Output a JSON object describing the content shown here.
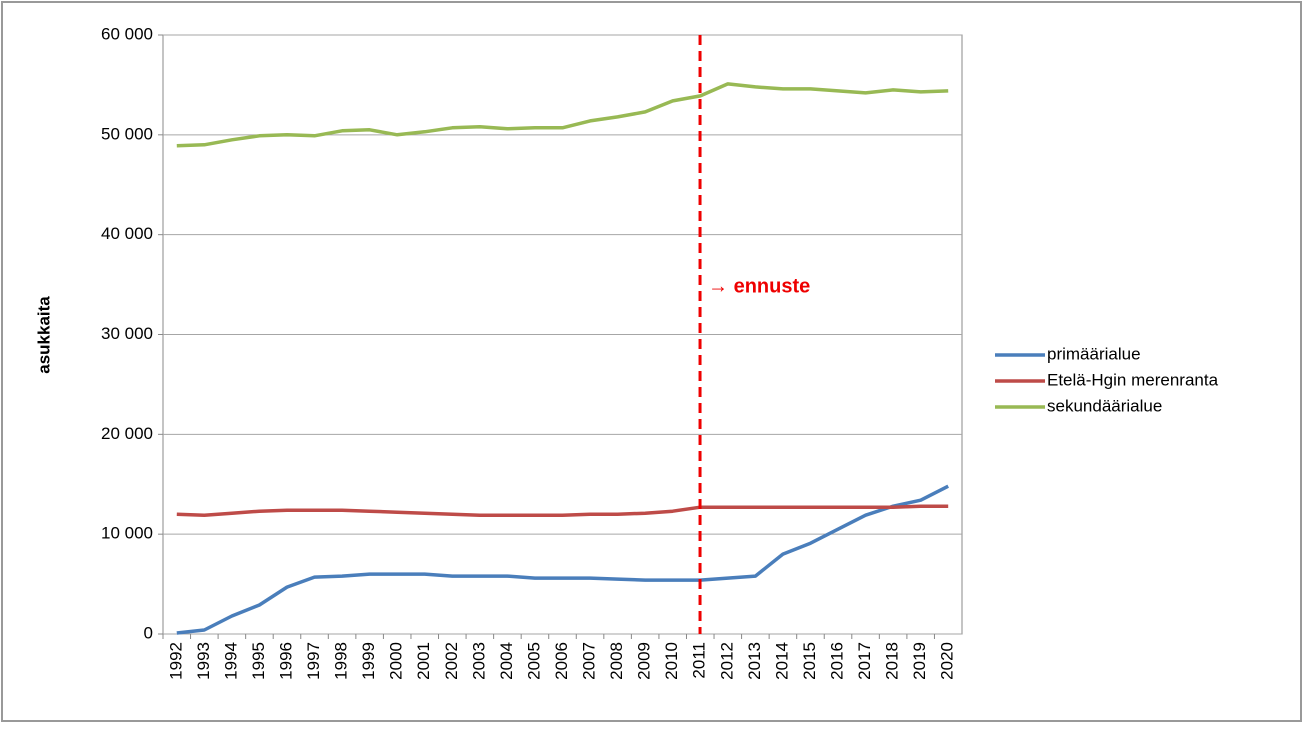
{
  "chart_data": {
    "type": "line",
    "y_label": "asukkaita",
    "annotation": "→ ennuste",
    "categories": [
      "1992",
      "1993",
      "1994",
      "1995",
      "1996",
      "1997",
      "1998",
      "1999",
      "2000",
      "2001",
      "2002",
      "2003",
      "2004",
      "2005",
      "2006",
      "2007",
      "2008",
      "2009",
      "2010",
      "2011",
      "2012",
      "2013",
      "2014",
      "2015",
      "2016",
      "2017",
      "2018",
      "2019",
      "2020"
    ],
    "series": [
      {
        "name": "primäärialue",
        "color": "#4a7ebb",
        "values": [
          100,
          400,
          1800,
          2900,
          4700,
          5700,
          5800,
          6000,
          6000,
          6000,
          5800,
          5800,
          5800,
          5600,
          5600,
          5600,
          5500,
          5400,
          5400,
          5400,
          5600,
          5800,
          8000,
          9100,
          10500,
          11900,
          12800,
          13400,
          14800
        ]
      },
      {
        "name": "Etelä-Hgin merenranta",
        "color": "#be4b48",
        "values": [
          12000,
          11900,
          12100,
          12300,
          12400,
          12400,
          12400,
          12300,
          12200,
          12100,
          12000,
          11900,
          11900,
          11900,
          11900,
          12000,
          12000,
          12100,
          12300,
          12700,
          12700,
          12700,
          12700,
          12700,
          12700,
          12700,
          12700,
          12800,
          12800
        ]
      },
      {
        "name": "sekundäärialue",
        "color": "#98b954",
        "values": [
          48900,
          49000,
          49500,
          49900,
          50000,
          49900,
          50400,
          50500,
          50000,
          50300,
          50700,
          50800,
          50600,
          50700,
          50700,
          51400,
          51800,
          52300,
          53400,
          53900,
          55100,
          54800,
          54600,
          54600,
          54400,
          54200,
          54500,
          54300,
          54400
        ]
      }
    ],
    "ylim": [
      0,
      60000
    ],
    "yticks": [
      0,
      {
        "value": 10000,
        "label": "10 000"
      },
      {
        "value": 20000,
        "label": "20 000"
      },
      {
        "value": 30000,
        "label": "30 000"
      },
      {
        "value": 40000,
        "label": "40 000"
      },
      {
        "value": 50000,
        "label": "50 000"
      },
      {
        "value": 60000,
        "label": "60 000"
      }
    ],
    "grid": true,
    "legend": "right"
  }
}
